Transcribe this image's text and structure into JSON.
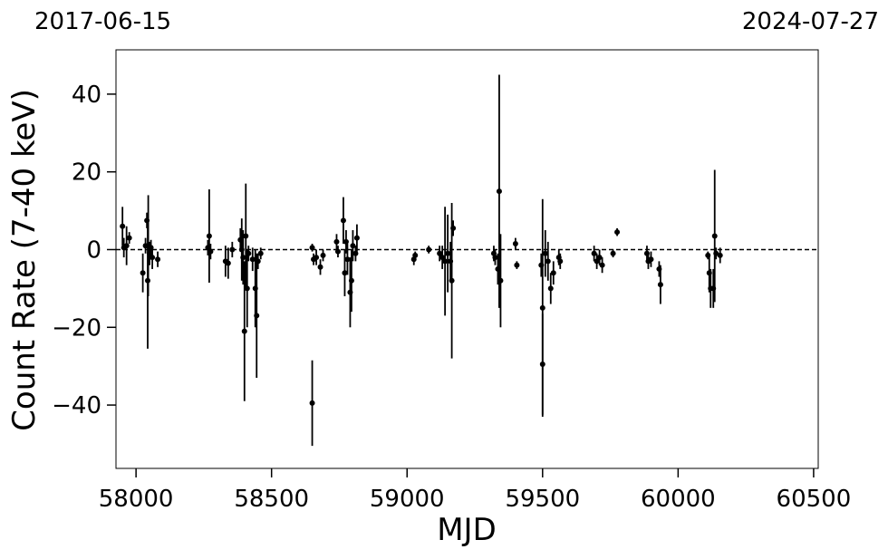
{
  "chart_data": {
    "type": "scatter",
    "x_label": "MJD",
    "y_label": "Count Rate (7-40 keV)",
    "date_labels": [
      "2017-06-15",
      "2024-07-27"
    ],
    "color": "#000000",
    "hline": 0,
    "x": [
      57950,
      57955,
      57965,
      57975,
      58025,
      58035,
      58040,
      58043,
      58045,
      58050,
      58055,
      58060,
      58080,
      58265,
      58270,
      58275,
      58330,
      58340,
      58355,
      58385,
      58390,
      58395,
      58400,
      58405,
      58410,
      58415,
      58430,
      58440,
      58445,
      58450,
      58460,
      58650,
      58650,
      58655,
      58665,
      58680,
      58690,
      58740,
      58745,
      58765,
      58770,
      58775,
      58780,
      58790,
      58795,
      58800,
      58810,
      58815,
      59025,
      59030,
      59080,
      59120,
      59130,
      59140,
      59150,
      59160,
      59165,
      59170,
      59320,
      59325,
      59335,
      59340,
      59345,
      59400,
      59405,
      59495,
      59500,
      59500,
      59510,
      59520,
      59530,
      59540,
      59560,
      59565,
      59690,
      59700,
      59710,
      59720,
      59760,
      59775,
      59885,
      59890,
      59900,
      59930,
      59935,
      60110,
      60115,
      60120,
      60130,
      60135,
      60140,
      60155
    ],
    "values": [
      6,
      0.5,
      1,
      3,
      -6,
      1,
      7.5,
      -8,
      1,
      -1,
      0.5,
      -2,
      -2.5,
      0.5,
      3.5,
      -0.5,
      -3,
      -3.5,
      0,
      2.5,
      0,
      -2,
      -21,
      3.5,
      -10,
      -1,
      -2.5,
      -10,
      -17,
      -3,
      -1,
      0.5,
      -39.5,
      -2.5,
      -2,
      -4.5,
      -1.5,
      2,
      -0.5,
      7.5,
      -6,
      2,
      -2.5,
      -11,
      -8,
      1,
      -1,
      3,
      -2.5,
      -1.5,
      0,
      -1,
      -2,
      -3,
      -1,
      -3,
      -8,
      5.5,
      -1,
      -2,
      -5,
      15,
      -8,
      1.5,
      -4,
      -4,
      -15,
      -29.5,
      -1,
      -3,
      -10,
      -6,
      -2,
      -3,
      -1,
      -3,
      -2,
      -4,
      -1,
      4.5,
      -1,
      -3,
      -2.5,
      -5,
      -9,
      -1.5,
      -6,
      -10,
      -10,
      3.5,
      -1,
      -1.5
    ],
    "errors": [
      5,
      2.5,
      5,
      1.5,
      5,
      2,
      2,
      17.5,
      13,
      3,
      2,
      3,
      2,
      2,
      12,
      2,
      4,
      4,
      2,
      3,
      8,
      7,
      18,
      13.5,
      10,
      2,
      3,
      10,
      16,
      2,
      1.5,
      1,
      11,
      1.5,
      2,
      2,
      1.5,
      2,
      1.5,
      6,
      6,
      3,
      4,
      9,
      8,
      4,
      2,
      3.5,
      1.5,
      1,
      1,
      2,
      3,
      14,
      10,
      5,
      20,
      2,
      2,
      2,
      4,
      30,
      12,
      1.5,
      1,
      3,
      28,
      13,
      6,
      5,
      4,
      3,
      2,
      2,
      2,
      2,
      2,
      2,
      1,
      1,
      2,
      2,
      2,
      2,
      5,
      1,
      5,
      5,
      5,
      17,
      1.5,
      2
    ],
    "xlim": [
      57926,
      60517
    ],
    "ylim": [
      -56.3,
      51.4
    ],
    "xticks": [
      58000,
      58500,
      59000,
      59500,
      60000,
      60500
    ],
    "yticks": [
      {
        "value": -40,
        "label": "−40"
      },
      {
        "value": -20,
        "label": "−20"
      },
      0,
      20,
      40
    ]
  }
}
